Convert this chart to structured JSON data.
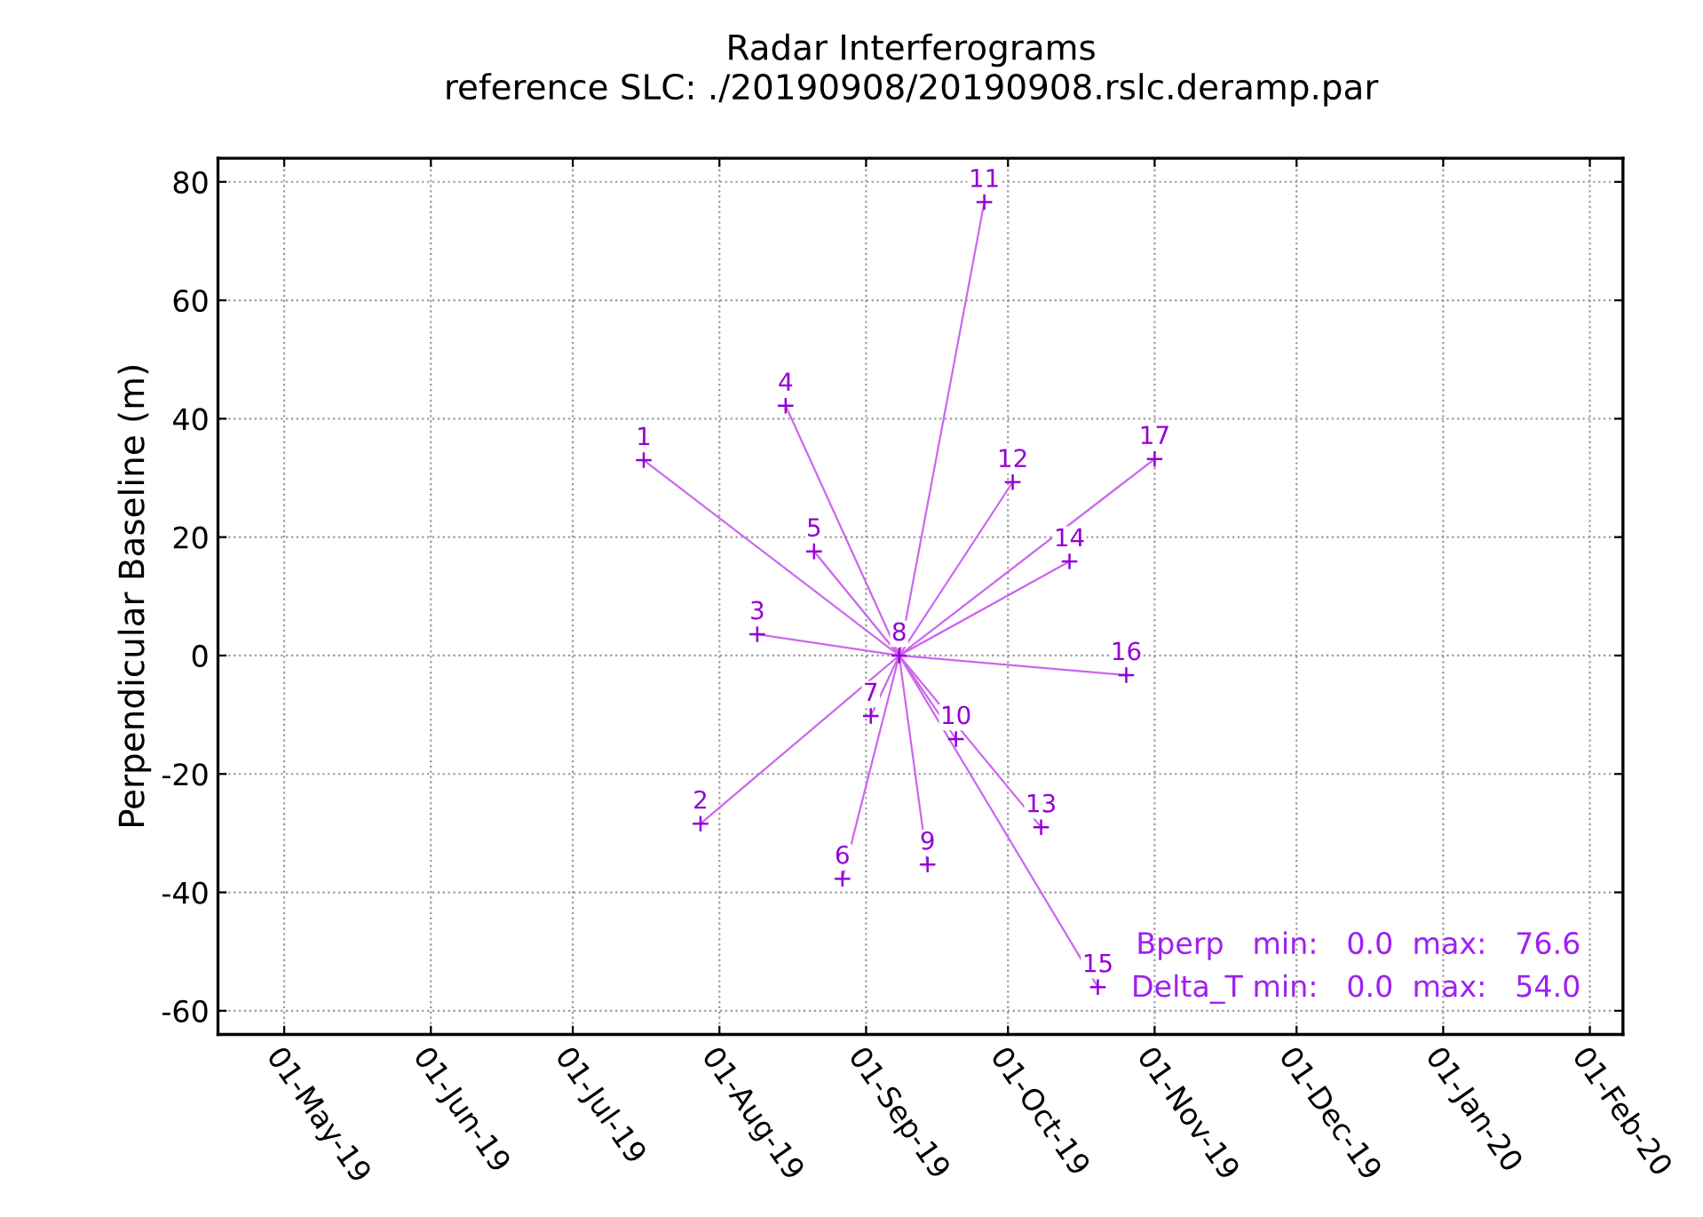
{
  "chart_data": {
    "type": "scatter",
    "title": "Radar Interferograms",
    "subtitle": "reference SLC: ./20190908/20190908.rslc.deramp.par",
    "ylabel": "Perpendicular Baseline (m)",
    "xlim": [
      "2019-04-17",
      "2020-02-08"
    ],
    "ylim": [
      -64,
      84
    ],
    "xticks": [
      {
        "value": "2019-05-01",
        "label": "01-May-19"
      },
      {
        "value": "2019-06-01",
        "label": "01-Jun-19"
      },
      {
        "value": "2019-07-01",
        "label": "01-Jul-19"
      },
      {
        "value": "2019-08-01",
        "label": "01-Aug-19"
      },
      {
        "value": "2019-09-01",
        "label": "01-Sep-19"
      },
      {
        "value": "2019-10-01",
        "label": "01-Oct-19"
      },
      {
        "value": "2019-11-01",
        "label": "01-Nov-19"
      },
      {
        "value": "2019-12-01",
        "label": "01-Dec-19"
      },
      {
        "value": "2020-01-01",
        "label": "01-Jan-20"
      },
      {
        "value": "2020-02-01",
        "label": "01-Feb-20"
      }
    ],
    "yticks": [
      -60,
      -40,
      -20,
      0,
      20,
      40,
      60,
      80
    ],
    "grid": true,
    "series": [
      {
        "type": "line",
        "color": "#cc66ee",
        "x": [
          "2019-09-08",
          "2019-07-16"
        ],
        "values": [
          0,
          33
        ]
      },
      {
        "type": "line",
        "color": "#cc66ee",
        "x": [
          "2019-09-08",
          "2019-07-28"
        ],
        "values": [
          0,
          -28.4
        ]
      },
      {
        "type": "line",
        "color": "#cc66ee",
        "x": [
          "2019-09-08",
          "2019-08-09"
        ],
        "values": [
          0,
          3.6
        ]
      },
      {
        "type": "line",
        "color": "#cc66ee",
        "x": [
          "2019-09-08",
          "2019-08-15"
        ],
        "values": [
          0,
          42.2
        ]
      },
      {
        "type": "line",
        "color": "#cc66ee",
        "x": [
          "2019-09-08",
          "2019-08-21"
        ],
        "values": [
          0,
          17.6
        ]
      },
      {
        "type": "line",
        "color": "#cc66ee",
        "x": [
          "2019-09-08",
          "2019-08-27"
        ],
        "values": [
          0,
          -37.7
        ]
      },
      {
        "type": "line",
        "color": "#cc66ee",
        "x": [
          "2019-09-08",
          "2019-09-02"
        ],
        "values": [
          0,
          -10.2
        ]
      },
      {
        "type": "line",
        "color": "#cc66ee",
        "x": [
          "2019-09-08",
          "2019-09-14"
        ],
        "values": [
          0,
          -35.3
        ]
      },
      {
        "type": "line",
        "color": "#cc66ee",
        "x": [
          "2019-09-08",
          "2019-09-20"
        ],
        "values": [
          0,
          -14.1
        ]
      },
      {
        "type": "line",
        "color": "#cc66ee",
        "x": [
          "2019-09-08",
          "2019-09-26"
        ],
        "values": [
          0,
          76.6
        ]
      },
      {
        "type": "line",
        "color": "#cc66ee",
        "x": [
          "2019-09-08",
          "2019-10-02"
        ],
        "values": [
          0,
          29.3
        ]
      },
      {
        "type": "line",
        "color": "#cc66ee",
        "x": [
          "2019-09-08",
          "2019-10-08"
        ],
        "values": [
          0,
          -29
        ]
      },
      {
        "type": "line",
        "color": "#cc66ee",
        "x": [
          "2019-09-08",
          "2019-10-14"
        ],
        "values": [
          0,
          15.9
        ]
      },
      {
        "type": "line",
        "color": "#cc66ee",
        "x": [
          "2019-09-08",
          "2019-10-20"
        ],
        "values": [
          0,
          -56
        ]
      },
      {
        "type": "line",
        "color": "#cc66ee",
        "x": [
          "2019-09-08",
          "2019-10-26"
        ],
        "values": [
          0,
          -3.3
        ]
      },
      {
        "type": "line",
        "color": "#cc66ee",
        "x": [
          "2019-09-08",
          "2019-11-01"
        ],
        "values": [
          0,
          33.2
        ]
      },
      {
        "marker": "cross",
        "color": "#9400d3",
        "x": [
          "2019-07-16",
          "2019-07-28",
          "2019-08-09",
          "2019-08-15",
          "2019-08-21",
          "2019-08-27",
          "2019-09-02",
          "2019-09-08",
          "2019-09-14",
          "2019-09-20",
          "2019-09-26",
          "2019-10-02",
          "2019-10-08",
          "2019-10-14",
          "2019-10-20",
          "2019-10-26",
          "2019-11-01"
        ],
        "values": [
          33,
          -28.4,
          3.6,
          42.2,
          17.6,
          -37.7,
          -10.2,
          0,
          -35.3,
          -14.1,
          76.6,
          29.3,
          -29,
          15.9,
          -56,
          -3.3,
          33.2
        ]
      }
    ],
    "annotations": [
      "Bperp   min:   0.0  max:   76.6",
      "Delta_T min:   0.0  max:   54.0",
      {
        "text": "1",
        "x": "2019-07-16",
        "y": 33
      },
      {
        "text": "2",
        "x": "2019-07-28",
        "y": -28.4
      },
      {
        "text": "3",
        "x": "2019-08-09",
        "y": 3.6
      },
      {
        "text": "4",
        "x": "2019-08-15",
        "y": 42.2
      },
      {
        "text": "5",
        "x": "2019-08-21",
        "y": 17.6
      },
      {
        "text": "6",
        "x": "2019-08-27",
        "y": -37.7
      },
      {
        "text": "7",
        "x": "2019-09-02",
        "y": -10.2
      },
      {
        "text": "8",
        "x": "2019-09-08",
        "y": 0
      },
      {
        "text": "9",
        "x": "2019-09-14",
        "y": -35.3
      },
      {
        "text": "10",
        "x": "2019-09-20",
        "y": -14.1
      },
      {
        "text": "11",
        "x": "2019-09-26",
        "y": 76.6
      },
      {
        "text": "12",
        "x": "2019-10-02",
        "y": 29.3
      },
      {
        "text": "13",
        "x": "2019-10-08",
        "y": -29
      },
      {
        "text": "14",
        "x": "2019-10-14",
        "y": 15.9
      },
      {
        "text": "15",
        "x": "2019-10-20",
        "y": -56
      },
      {
        "text": "16",
        "x": "2019-10-26",
        "y": -3.3
      },
      {
        "text": "17",
        "x": "2019-11-01",
        "y": 33.2
      }
    ]
  }
}
